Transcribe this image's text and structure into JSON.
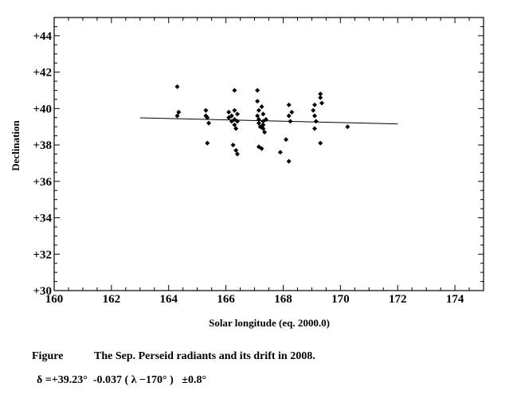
{
  "chart_data": {
    "type": "scatter",
    "xlabel": "Solar longitude (eq. 2000.0)",
    "ylabel": "Declination",
    "xlim": [
      160,
      175
    ],
    "ylim": [
      30,
      45
    ],
    "x_ticks": [
      160,
      162,
      164,
      166,
      168,
      170,
      172,
      174
    ],
    "x_tick_labels": [
      "160",
      "162",
      "164",
      "166",
      "168",
      "170",
      "172",
      "174"
    ],
    "y_ticks": [
      30,
      32,
      34,
      36,
      38,
      40,
      42,
      44
    ],
    "y_tick_labels": [
      "+30",
      "+32",
      "+34",
      "+36",
      "+38",
      "+40",
      "+42",
      "+44"
    ],
    "grid": false,
    "points": [
      {
        "x": 164.3,
        "y": 41.2
      },
      {
        "x": 164.3,
        "y": 39.6
      },
      {
        "x": 164.35,
        "y": 39.8
      },
      {
        "x": 165.3,
        "y": 39.9
      },
      {
        "x": 165.3,
        "y": 39.6
      },
      {
        "x": 165.35,
        "y": 39.5
      },
      {
        "x": 165.4,
        "y": 39.2
      },
      {
        "x": 165.35,
        "y": 38.1
      },
      {
        "x": 166.1,
        "y": 39.8
      },
      {
        "x": 166.1,
        "y": 39.5
      },
      {
        "x": 166.2,
        "y": 39.3
      },
      {
        "x": 166.2,
        "y": 39.6
      },
      {
        "x": 166.3,
        "y": 41.0
      },
      {
        "x": 166.3,
        "y": 39.9
      },
      {
        "x": 166.3,
        "y": 39.4
      },
      {
        "x": 166.3,
        "y": 39.1
      },
      {
        "x": 166.35,
        "y": 38.9
      },
      {
        "x": 166.4,
        "y": 39.7
      },
      {
        "x": 166.25,
        "y": 38.0
      },
      {
        "x": 166.35,
        "y": 37.7
      },
      {
        "x": 166.4,
        "y": 37.5
      },
      {
        "x": 166.4,
        "y": 39.3
      },
      {
        "x": 167.1,
        "y": 41.0
      },
      {
        "x": 167.1,
        "y": 40.4
      },
      {
        "x": 167.15,
        "y": 39.9
      },
      {
        "x": 167.1,
        "y": 39.6
      },
      {
        "x": 167.15,
        "y": 39.4
      },
      {
        "x": 167.15,
        "y": 39.2
      },
      {
        "x": 167.2,
        "y": 39.0
      },
      {
        "x": 167.25,
        "y": 40.1
      },
      {
        "x": 167.3,
        "y": 39.7
      },
      {
        "x": 167.3,
        "y": 39.3
      },
      {
        "x": 167.3,
        "y": 38.9
      },
      {
        "x": 167.35,
        "y": 38.7
      },
      {
        "x": 167.3,
        "y": 39.1
      },
      {
        "x": 167.15,
        "y": 37.9
      },
      {
        "x": 167.25,
        "y": 37.8
      },
      {
        "x": 167.4,
        "y": 39.4
      },
      {
        "x": 168.2,
        "y": 40.2
      },
      {
        "x": 168.2,
        "y": 39.6
      },
      {
        "x": 168.25,
        "y": 39.3
      },
      {
        "x": 168.3,
        "y": 39.8
      },
      {
        "x": 168.1,
        "y": 38.3
      },
      {
        "x": 167.9,
        "y": 37.6
      },
      {
        "x": 168.2,
        "y": 37.1
      },
      {
        "x": 169.1,
        "y": 40.2
      },
      {
        "x": 169.05,
        "y": 39.9
      },
      {
        "x": 169.1,
        "y": 39.6
      },
      {
        "x": 169.15,
        "y": 39.3
      },
      {
        "x": 169.1,
        "y": 38.9
      },
      {
        "x": 169.3,
        "y": 40.8
      },
      {
        "x": 169.3,
        "y": 40.6
      },
      {
        "x": 169.35,
        "y": 40.3
      },
      {
        "x": 169.3,
        "y": 38.1
      },
      {
        "x": 170.25,
        "y": 39.0
      }
    ],
    "fit_line": {
      "x": [
        163.0,
        172.0
      ],
      "y": [
        39.489,
        39.156
      ]
    }
  },
  "caption": {
    "label": "Figure",
    "text": "The Sep. Perseid radiants and its drift in 2008.",
    "formula": "δ =+39.23°  -0.037 ( λ −170° )   ±0.8°"
  }
}
